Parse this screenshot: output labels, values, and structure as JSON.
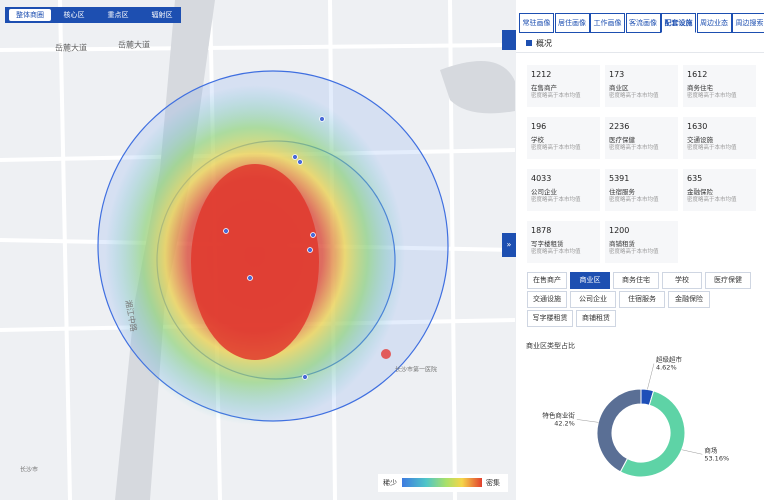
{
  "map_tabs": [
    "整体商圈",
    "核心区",
    "重点区",
    "辐射区"
  ],
  "map_labels": [
    "岳麓大道",
    "岳麓大道",
    "湘江中路",
    "长沙市第一医院",
    "长沙市"
  ],
  "legend": {
    "low": "稀少",
    "high": "密集"
  },
  "panel_tabs": [
    "常驻画像",
    "居住画像",
    "工作画像",
    "客流画像",
    "配套设施",
    "周边业态",
    "周边搜索"
  ],
  "active_tab": 4,
  "section_title": "概况",
  "cards": [
    {
      "count": 1212,
      "name": "在售商产",
      "note": "密度略高于本市均值"
    },
    {
      "count": 173,
      "name": "商业区",
      "note": "密度略高于本市均值"
    },
    {
      "count": 1612,
      "name": "商务住宅",
      "note": "密度略高于本市均值"
    },
    {
      "count": 196,
      "name": "学校",
      "note": "密度略高于本市均值"
    },
    {
      "count": 2236,
      "name": "医疗保健",
      "note": "密度略高于本市均值"
    },
    {
      "count": 1630,
      "name": "交通设施",
      "note": "密度略高于本市均值"
    },
    {
      "count": 4033,
      "name": "公司企业",
      "note": "密度略高于本市均值"
    },
    {
      "count": 5391,
      "name": "住宿服务",
      "note": "密度略高于本市均值"
    },
    {
      "count": 635,
      "name": "金融保险",
      "note": "密度略高于本市均值"
    },
    {
      "count": 1878,
      "name": "写字楼租赁",
      "note": "密度略高于本市均值"
    },
    {
      "count": 1200,
      "name": "商铺租赁",
      "note": "密度略高于本市均值"
    }
  ],
  "filters": [
    "在售商产",
    "商业区",
    "商务住宅",
    "学校",
    "医疗保健",
    "交通设施",
    "公司企业",
    "住宿服务",
    "金融保险",
    "写字楼租赁",
    "商铺租赁"
  ],
  "active_filter": 1,
  "donut": {
    "title": "商业区类型占比",
    "segments": [
      {
        "name": "超级超市",
        "value": 4.62,
        "label": "4.62%",
        "color": "#1e4fb8"
      },
      {
        "name": "商场",
        "value": 53.16,
        "label": "53.16%",
        "color": "#5ed3a6"
      },
      {
        "name": "特色商业街",
        "value": 42.2,
        "label": "42.2%",
        "color": "#5a6f95"
      }
    ]
  }
}
